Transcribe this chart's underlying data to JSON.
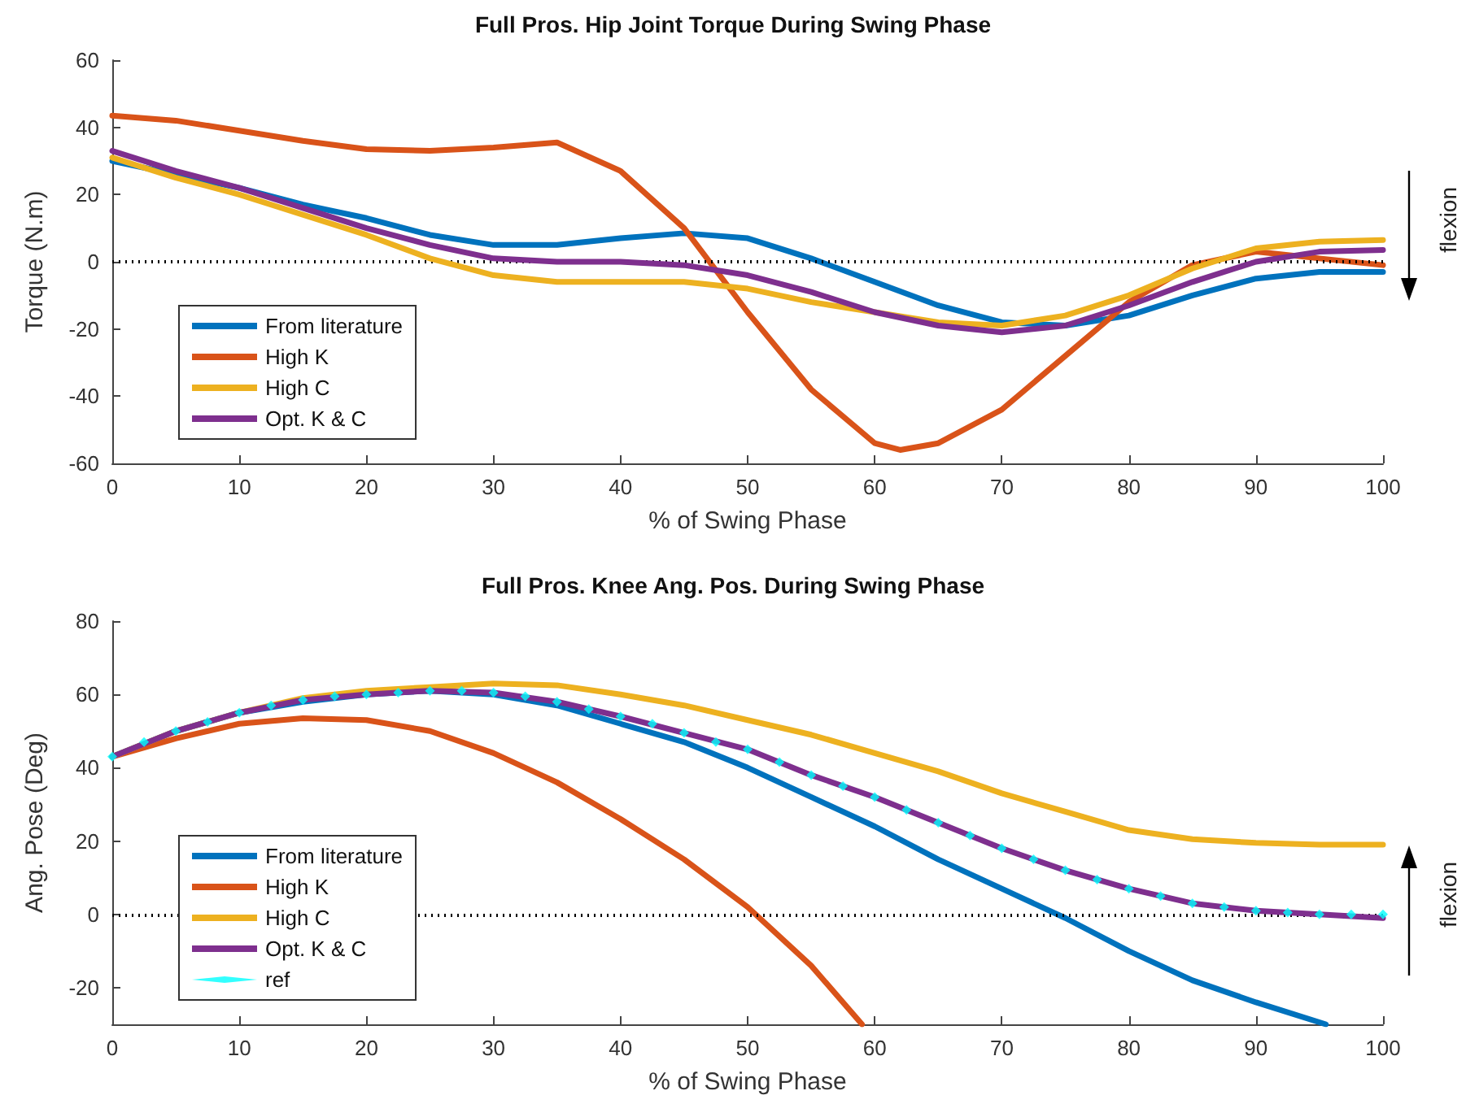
{
  "chart_data": [
    {
      "type": "line",
      "title": "Full Pros. Hip Joint Torque During Swing Phase",
      "xlabel": "% of Swing Phase",
      "ylabel": "Torque (N.m)",
      "annotations": [
        "flexion"
      ],
      "x": [
        0,
        5,
        10,
        15,
        20,
        25,
        30,
        35,
        40,
        45,
        50,
        55,
        60,
        65,
        70,
        75,
        80,
        85,
        90,
        95,
        100
      ],
      "xlim": [
        0,
        100
      ],
      "xticks": [
        0,
        10,
        20,
        30,
        40,
        50,
        60,
        70,
        80,
        90,
        100
      ],
      "ylim": [
        -60,
        60
      ],
      "yticks": [
        -60,
        -40,
        -20,
        0,
        20,
        40,
        60
      ],
      "grid": false,
      "legend": "bottom left",
      "marker": "none",
      "line_style": "solid",
      "ref_lines": [
        {
          "axis": "y",
          "value": 0,
          "color": "#000000",
          "line_style": "dotted"
        }
      ],
      "series": [
        {
          "name": "From literature",
          "color": "#0072bd",
          "values": [
            30,
            26,
            22,
            17,
            13,
            8,
            5,
            5,
            7,
            8.5,
            7,
            1,
            -6,
            -13,
            -18,
            -19,
            -16,
            -10,
            -5,
            -3,
            -3
          ]
        },
        {
          "name": "High K",
          "color": "#d95319",
          "x": [
            0,
            5,
            10,
            15,
            20,
            25,
            30,
            35,
            40,
            45,
            50,
            55,
            60,
            62,
            65,
            70,
            75,
            80,
            85,
            90,
            95,
            100
          ],
          "values": [
            43.5,
            42,
            39,
            36,
            33.5,
            33,
            34,
            35.5,
            27,
            10,
            -15,
            -38,
            -54,
            -56,
            -54,
            -44,
            -28,
            -12,
            -1,
            3,
            1,
            -1
          ]
        },
        {
          "name": "High C",
          "color": "#edb120",
          "values": [
            31,
            25,
            20,
            14,
            8,
            1,
            -4,
            -6,
            -6,
            -6,
            -8,
            -12,
            -15,
            -18,
            -19,
            -16,
            -10,
            -2,
            4,
            6,
            6.5
          ]
        },
        {
          "name": "Opt. K & C",
          "color": "#7e2f8e",
          "values": [
            33,
            27,
            22,
            16,
            10,
            5,
            1,
            0,
            0,
            -1,
            -4,
            -9,
            -15,
            -19,
            -21,
            -19,
            -13,
            -6,
            0,
            3,
            3.5
          ]
        }
      ]
    },
    {
      "type": "line",
      "title": "Full Pros. Knee Ang. Pos. During Swing Phase",
      "xlabel": "% of Swing Phase",
      "ylabel": "Ang. Pose (Deg)",
      "annotations": [
        "flexion"
      ],
      "x": [
        0,
        5,
        10,
        15,
        20,
        25,
        30,
        35,
        40,
        45,
        50,
        55,
        60,
        65,
        70,
        75,
        80,
        85,
        90,
        95,
        100
      ],
      "xlim": [
        0,
        100
      ],
      "xticks": [
        0,
        10,
        20,
        30,
        40,
        50,
        60,
        70,
        80,
        90,
        100
      ],
      "ylim": [
        -30,
        80
      ],
      "yticks": [
        -20,
        0,
        20,
        40,
        60,
        80
      ],
      "grid": false,
      "legend": "bottom left",
      "marker": "none",
      "line_style": "solid",
      "ref_lines": [
        {
          "axis": "y",
          "value": 0,
          "color": "#000000",
          "line_style": "dotted"
        }
      ],
      "series": [
        {
          "name": "From literature",
          "color": "#0072bd",
          "x": [
            0,
            5,
            10,
            15,
            20,
            25,
            30,
            35,
            40,
            45,
            50,
            55,
            60,
            65,
            70,
            75,
            80,
            85,
            90,
            95.5
          ],
          "values": [
            43,
            50,
            55,
            58,
            60,
            61,
            60,
            57,
            52,
            47,
            40,
            32,
            24,
            15,
            7,
            -1,
            -10,
            -18,
            -24,
            -30
          ]
        },
        {
          "name": "High K",
          "color": "#d95319",
          "x": [
            0,
            5,
            10,
            15,
            20,
            25,
            30,
            35,
            40,
            45,
            50,
            55,
            59
          ],
          "values": [
            43,
            48,
            52,
            53.5,
            53,
            50,
            44,
            36,
            26,
            15,
            2,
            -14,
            -30
          ]
        },
        {
          "name": "High C",
          "color": "#edb120",
          "values": [
            43,
            50,
            55,
            59,
            61,
            62,
            63,
            62.5,
            60,
            57,
            53,
            49,
            44,
            39,
            33,
            28,
            23,
            20.5,
            19.5,
            19,
            19
          ]
        },
        {
          "name": "Opt. K & C",
          "color": "#7e2f8e",
          "values": [
            43,
            50,
            55,
            58.5,
            60,
            61,
            60.5,
            58,
            54,
            49.5,
            45,
            38,
            32,
            25,
            18,
            12,
            7,
            3,
            1,
            0,
            -1
          ]
        },
        {
          "name": "ref",
          "color": "#00ffff",
          "type": "scatter",
          "marker": "diamond",
          "x": [
            0,
            2.5,
            5,
            7.5,
            10,
            12.5,
            15,
            17.5,
            20,
            22.5,
            25,
            27.5,
            30,
            32.5,
            35,
            37.5,
            40,
            42.5,
            45,
            47.5,
            50,
            52.5,
            55,
            57.5,
            60,
            62.5,
            65,
            67.5,
            70,
            72.5,
            75,
            77.5,
            80,
            82.5,
            85,
            87.5,
            90,
            92.5,
            95,
            97.5,
            100
          ],
          "values": [
            43,
            47,
            50,
            52.5,
            55,
            57,
            58.5,
            59.5,
            60,
            60.5,
            61,
            61,
            60.5,
            59.5,
            58,
            56,
            54,
            52,
            49.5,
            47,
            45,
            41.5,
            38,
            35,
            32,
            28.5,
            25,
            21.5,
            18,
            15,
            12,
            9.5,
            7,
            5,
            3,
            2,
            1,
            0.5,
            0,
            0,
            0
          ]
        }
      ]
    }
  ]
}
